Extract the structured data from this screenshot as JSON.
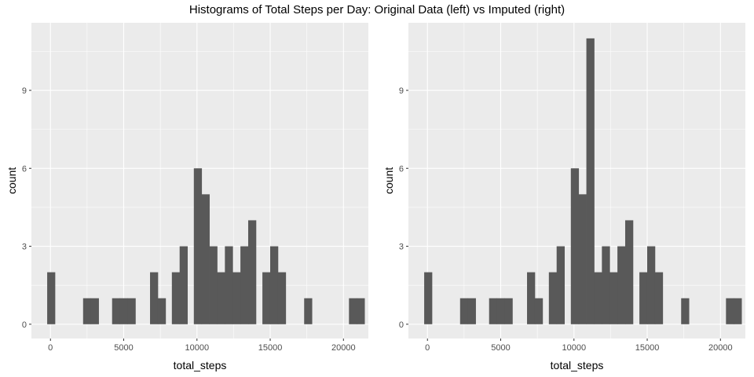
{
  "figure": {
    "title": "Histograms of Total Steps per Day: Original Data (left) vs Imputed (right)"
  },
  "colors": {
    "panel_background": "#ebebeb",
    "grid": "#ffffff",
    "bar_fill": "#595959",
    "tick_text": "#4d4d4d"
  },
  "chart_data": [
    {
      "type": "bar",
      "title": "",
      "xlabel": "total_steps",
      "ylabel": "count",
      "bin_width": 530,
      "xlim": [
        -1300,
        21700
      ],
      "ylim": [
        -0.55,
        11.6
      ],
      "xticks": [
        0,
        5000,
        10000,
        15000,
        20000
      ],
      "yticks": [
        0,
        3,
        6,
        9
      ],
      "grid": true,
      "legend": "none",
      "bins": [
        {
          "x": 41,
          "count": 2
        },
        {
          "x": 2492,
          "count": 1
        },
        {
          "x": 3022,
          "count": 1
        },
        {
          "x": 4472,
          "count": 1
        },
        {
          "x": 5002,
          "count": 1
        },
        {
          "x": 5532,
          "count": 1
        },
        {
          "x": 7062,
          "count": 2
        },
        {
          "x": 7592,
          "count": 1
        },
        {
          "x": 8552,
          "count": 2
        },
        {
          "x": 9082,
          "count": 3
        },
        {
          "x": 10052,
          "count": 6
        },
        {
          "x": 10582,
          "count": 5
        },
        {
          "x": 11112,
          "count": 3
        },
        {
          "x": 11642,
          "count": 2
        },
        {
          "x": 12172,
          "count": 3
        },
        {
          "x": 12702,
          "count": 2
        },
        {
          "x": 13232,
          "count": 3
        },
        {
          "x": 13762,
          "count": 4
        },
        {
          "x": 14732,
          "count": 2
        },
        {
          "x": 15262,
          "count": 3
        },
        {
          "x": 15792,
          "count": 2
        },
        {
          "x": 17582,
          "count": 1
        },
        {
          "x": 20642,
          "count": 1
        },
        {
          "x": 21172,
          "count": 1
        }
      ]
    },
    {
      "type": "bar",
      "title": "",
      "xlabel": "total_steps",
      "ylabel": "count",
      "bin_width": 530,
      "xlim": [
        -1300,
        21700
      ],
      "ylim": [
        -0.55,
        11.6
      ],
      "xticks": [
        0,
        5000,
        10000,
        15000,
        20000
      ],
      "yticks": [
        0,
        3,
        6,
        9
      ],
      "grid": true,
      "legend": "none",
      "bins": [
        {
          "x": 41,
          "count": 2
        },
        {
          "x": 2492,
          "count": 1
        },
        {
          "x": 3022,
          "count": 1
        },
        {
          "x": 4472,
          "count": 1
        },
        {
          "x": 5002,
          "count": 1
        },
        {
          "x": 5532,
          "count": 1
        },
        {
          "x": 7062,
          "count": 2
        },
        {
          "x": 7592,
          "count": 1
        },
        {
          "x": 8552,
          "count": 2
        },
        {
          "x": 9082,
          "count": 3
        },
        {
          "x": 10052,
          "count": 6
        },
        {
          "x": 10582,
          "count": 5
        },
        {
          "x": 11112,
          "count": 11
        },
        {
          "x": 11642,
          "count": 2
        },
        {
          "x": 12172,
          "count": 3
        },
        {
          "x": 12702,
          "count": 2
        },
        {
          "x": 13232,
          "count": 3
        },
        {
          "x": 13762,
          "count": 4
        },
        {
          "x": 14732,
          "count": 2
        },
        {
          "x": 15262,
          "count": 3
        },
        {
          "x": 15792,
          "count": 2
        },
        {
          "x": 17582,
          "count": 1
        },
        {
          "x": 20642,
          "count": 1
        },
        {
          "x": 21172,
          "count": 1
        }
      ]
    }
  ]
}
